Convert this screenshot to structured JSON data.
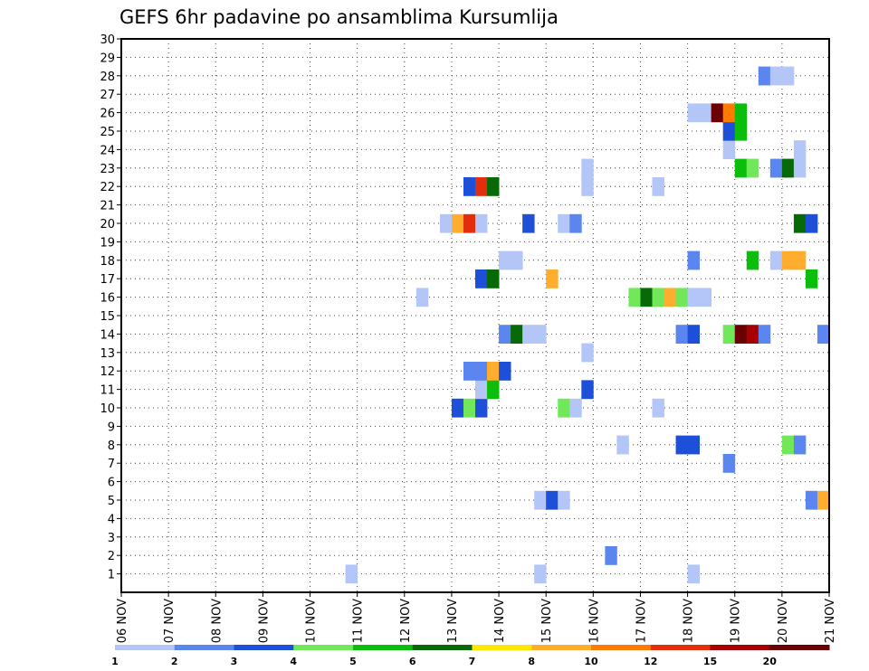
{
  "chart_data": {
    "type": "heatmap",
    "title": "GEFS 6hr padavine po ansamblima Kursumlija",
    "xlabel": "",
    "ylabel": "",
    "x_tick_labels": [
      "06 NOV",
      "07 NOV",
      "08 NOV",
      "09 NOV",
      "10 NOV",
      "11 NOV",
      "12 NOV",
      "13 NOV",
      "14 NOV",
      "15 NOV",
      "16 NOV",
      "17 NOV",
      "18 NOV",
      "19 NOV",
      "20 NOV",
      "21 NOV"
    ],
    "x_range_days": [
      0,
      15
    ],
    "step_hours": 6,
    "ylim": [
      0,
      30
    ],
    "y_tick_labels": [
      "1",
      "2",
      "3",
      "4",
      "5",
      "6",
      "7",
      "8",
      "9",
      "10",
      "11",
      "12",
      "13",
      "14",
      "15",
      "16",
      "17",
      "18",
      "19",
      "20",
      "21",
      "22",
      "23",
      "24",
      "25",
      "26",
      "27",
      "28",
      "29",
      "30"
    ],
    "grid": true,
    "legend": {
      "placement": "bottom",
      "labels": [
        "1",
        "2",
        "3",
        "4",
        "5",
        "6",
        "7",
        "8",
        "10",
        "12",
        "15",
        "20"
      ],
      "colors": [
        "#b3c6f7",
        "#5b86ef",
        "#1e4fd8",
        "#70e85a",
        "#0cbe0c",
        "#076907",
        "#ffe800",
        "#ffad2e",
        "#ff7b00",
        "#e32e0c",
        "#a60000",
        "#6b0000"
      ]
    },
    "cell_value_meaning": "class index: 0=1,1=2,2=3,3=4,4=5,5=6,6=7,7=8,8=10,9=12,10=15,11=20",
    "cells": [
      {
        "member": 1,
        "start": "10 NOV 18Z",
        "values": [
          0
        ]
      },
      {
        "member": 1,
        "start": "14 NOV 18Z",
        "values": [
          0
        ]
      },
      {
        "member": 1,
        "start": "18 NOV 00Z",
        "values": [
          0
        ]
      },
      {
        "member": 2,
        "start": "16 NOV 06Z",
        "values": [
          1
        ]
      },
      {
        "member": 5,
        "start": "14 NOV 18Z",
        "values": [
          0,
          2,
          0
        ]
      },
      {
        "member": 5,
        "start": "20 NOV 12Z",
        "values": [
          1,
          7
        ]
      },
      {
        "member": 7,
        "start": "18 NOV 18Z",
        "values": [
          1
        ]
      },
      {
        "member": 8,
        "start": "16 NOV 12Z",
        "values": [
          0
        ]
      },
      {
        "member": 8,
        "start": "17 NOV 18Z",
        "values": [
          2,
          2
        ]
      },
      {
        "member": 8,
        "start": "20 NOV 00Z",
        "values": [
          3,
          1
        ]
      },
      {
        "member": 10,
        "start": "13 NOV 00Z",
        "values": [
          2,
          3,
          2
        ]
      },
      {
        "member": 10,
        "start": "15 NOV 06Z",
        "values": [
          3,
          0
        ]
      },
      {
        "member": 10,
        "start": "17 NOV 06Z",
        "values": [
          0
        ]
      },
      {
        "member": 11,
        "start": "13 NOV 12Z",
        "values": [
          0,
          4
        ]
      },
      {
        "member": 11,
        "start": "15 NOV 18Z",
        "values": [
          2
        ]
      },
      {
        "member": 12,
        "start": "13 NOV 06Z",
        "values": [
          1,
          1,
          7,
          2
        ]
      },
      {
        "member": 13,
        "start": "15 NOV 18Z",
        "values": [
          0
        ]
      },
      {
        "member": 14,
        "start": "14 NOV 00Z",
        "values": [
          1,
          5,
          0,
          0
        ]
      },
      {
        "member": 14,
        "start": "17 NOV 18Z",
        "values": [
          1,
          2
        ]
      },
      {
        "member": 14,
        "start": "18 NOV 18Z",
        "values": [
          3,
          11,
          10,
          1
        ]
      },
      {
        "member": 14,
        "start": "20 NOV 18Z",
        "values": [
          1
        ]
      },
      {
        "member": 16,
        "start": "12 NOV 06Z",
        "values": [
          0
        ]
      },
      {
        "member": 16,
        "start": "16 NOV 18Z",
        "values": [
          3,
          5,
          3,
          7,
          3,
          0,
          0
        ]
      },
      {
        "member": 17,
        "start": "13 NOV 12Z",
        "values": [
          2,
          5
        ]
      },
      {
        "member": 17,
        "start": "15 NOV 00Z",
        "values": [
          7
        ]
      },
      {
        "member": 17,
        "start": "20 NOV 12Z",
        "values": [
          4
        ]
      },
      {
        "member": 18,
        "start": "14 NOV 00Z",
        "values": [
          0,
          0
        ]
      },
      {
        "member": 18,
        "start": "18 NOV 00Z",
        "values": [
          1
        ]
      },
      {
        "member": 18,
        "start": "19 NOV 06Z",
        "values": [
          4
        ]
      },
      {
        "member": 18,
        "start": "19 NOV 18Z",
        "values": [
          0,
          7,
          7
        ]
      },
      {
        "member": 20,
        "start": "12 NOV 18Z",
        "values": [
          0,
          7,
          9,
          0
        ]
      },
      {
        "member": 20,
        "start": "14 NOV 12Z",
        "values": [
          2
        ]
      },
      {
        "member": 20,
        "start": "15 NOV 06Z",
        "values": [
          0,
          1
        ]
      },
      {
        "member": 20,
        "start": "20 NOV 06Z",
        "values": [
          5,
          2
        ]
      },
      {
        "member": 22,
        "start": "15 NOV 18Z",
        "values": [
          0
        ]
      },
      {
        "member": 22,
        "start": "17 NOV 06Z",
        "values": [
          0
        ]
      },
      {
        "member": 22,
        "start": "13 NOV 06Z",
        "values": [
          2,
          9,
          5
        ]
      },
      {
        "member": 23,
        "start": "15 NOV 18Z",
        "values": [
          0
        ]
      },
      {
        "member": 23,
        "start": "19 NOV 00Z",
        "values": [
          4,
          3
        ]
      },
      {
        "member": 23,
        "start": "19 NOV 18Z",
        "values": [
          1,
          5,
          0
        ]
      },
      {
        "member": 24,
        "start": "18 NOV 18Z",
        "values": [
          0
        ]
      },
      {
        "member": 24,
        "start": "20 NOV 06Z",
        "values": [
          0
        ]
      },
      {
        "member": 25,
        "start": "18 NOV 18Z",
        "values": [
          2,
          4
        ]
      },
      {
        "member": 26,
        "start": "18 NOV 00Z",
        "values": [
          0,
          0,
          11,
          8,
          4
        ]
      },
      {
        "member": 28,
        "start": "19 NOV 12Z",
        "values": [
          1,
          0,
          0
        ]
      }
    ]
  }
}
